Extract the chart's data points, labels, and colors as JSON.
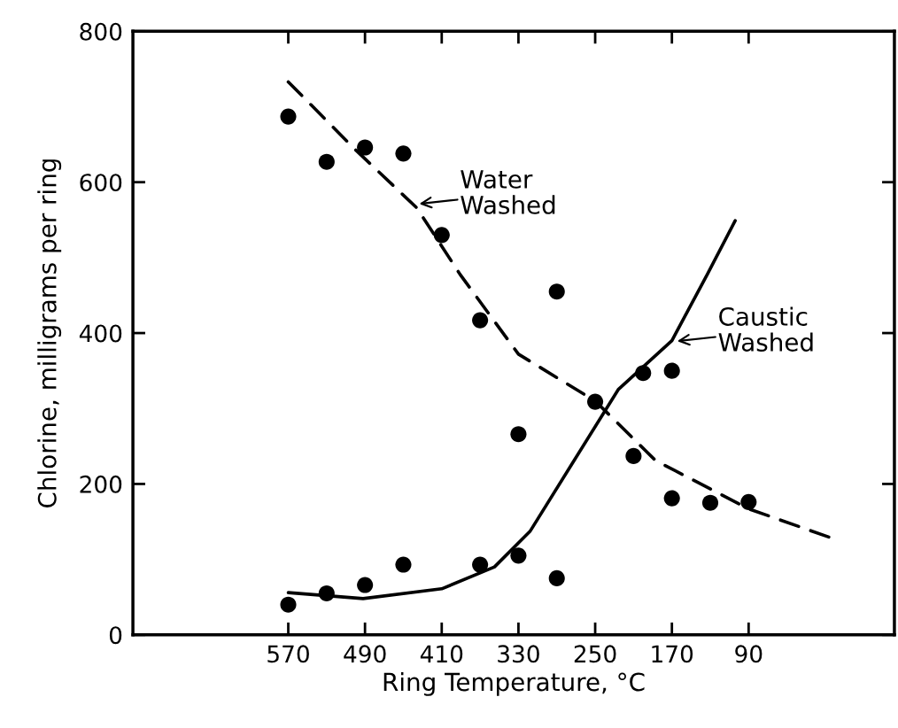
{
  "chart_data": {
    "type": "scatter",
    "xlabel": "Ring Temperature, °C",
    "ylabel": "Chlorine, milligrams per ring",
    "xlim": [
      732,
      -62
    ],
    "ylim": [
      0,
      800
    ],
    "xticks": [
      570,
      490,
      410,
      330,
      250,
      170,
      90
    ],
    "yticks": [
      0,
      200,
      400,
      600,
      800
    ],
    "grid": false,
    "marker": "circle",
    "series": [
      {
        "color": "#000000",
        "x": [
          570,
          530,
          490,
          450,
          410,
          370,
          290,
          250,
          210,
          170,
          130,
          90
        ],
        "values": [
          687,
          627,
          646,
          638,
          530,
          417,
          455,
          309,
          237,
          181,
          175,
          176
        ]
      },
      {
        "type": "line",
        "line_style": "dashed",
        "marker": "none",
        "color": "#000000",
        "x": [
          570,
          500,
          436,
          391,
          330,
          250,
          187,
          90,
          5
        ],
        "values": [
          733,
          643,
          566,
          478,
          372,
          310,
          231,
          167,
          129
        ]
      },
      {
        "color": "#000000",
        "x": [
          570,
          530,
          490,
          450,
          370,
          330,
          330,
          290,
          200,
          170
        ],
        "values": [
          40,
          55,
          66,
          93,
          93,
          105,
          266,
          75,
          347,
          350
        ]
      },
      {
        "type": "line",
        "line_style": "solid",
        "marker": "none",
        "color": "#000000",
        "x": [
          570,
          492,
          410,
          355,
          318,
          272,
          226,
          170,
          133,
          104
        ],
        "values": [
          56,
          48,
          61,
          90,
          137,
          231,
          325,
          390,
          478,
          549
        ]
      }
    ],
    "annotations": [
      {
        "text": "Water\nWashed",
        "x": 436,
        "y": 571
      },
      {
        "text": "Caustic\nWashed",
        "x": 167,
        "y": 389
      }
    ]
  }
}
